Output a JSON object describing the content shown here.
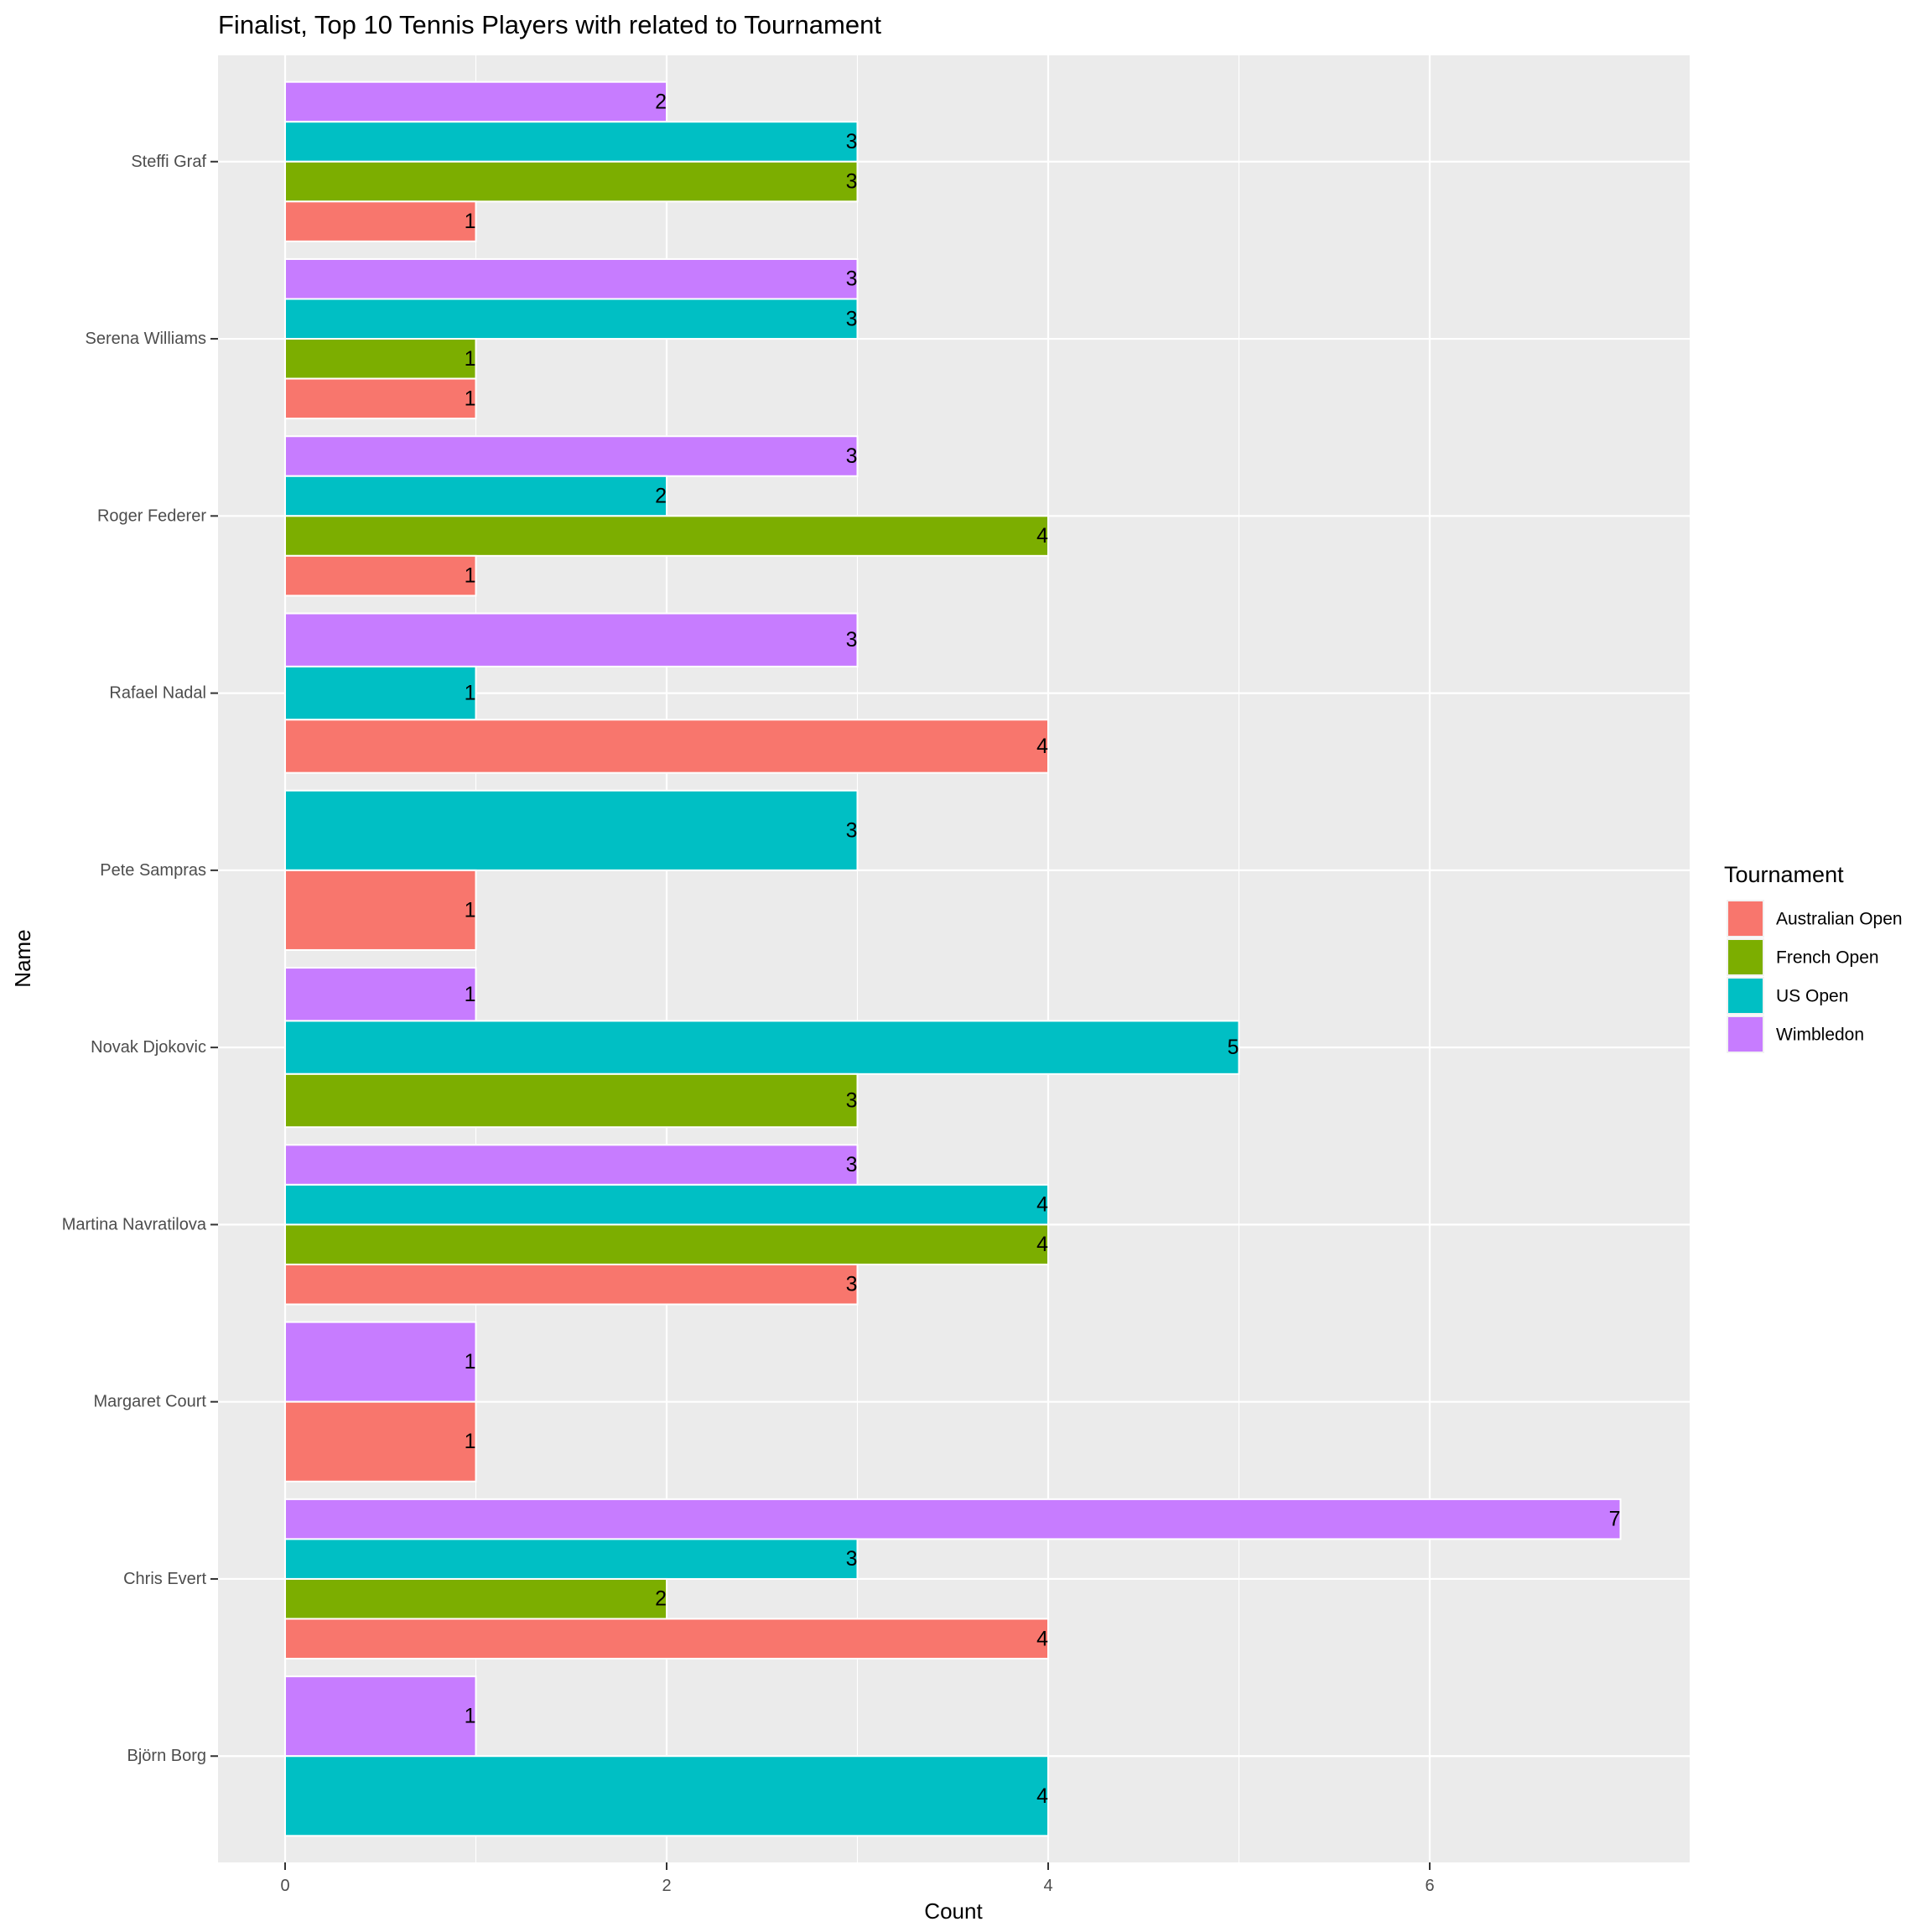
{
  "chart_data": {
    "type": "bar",
    "orientation": "horizontal",
    "position": "dodge",
    "title": "Finalist, Top 10 Tennis Players with related to Tournament",
    "xlabel": "Count",
    "ylabel": "Name",
    "xlim": [
      -0.35,
      7.35
    ],
    "x_ticks": [
      0,
      2,
      4,
      6
    ],
    "grid": true,
    "legend": {
      "title": "Tournament",
      "placement": "right",
      "entries": [
        "Australian Open",
        "French Open",
        "US Open",
        "Wimbledon"
      ]
    },
    "colors": {
      "Australian Open": "#F8766D",
      "French Open": "#7CAE00",
      "US Open": "#00BFC4",
      "Wimbledon": "#C77CFF"
    },
    "categories": [
      "Björn Borg",
      "Chris Evert",
      "Margaret Court",
      "Martina Navratilova",
      "Novak Djokovic",
      "Pete Sampras",
      "Rafael Nadal",
      "Roger Federer",
      "Serena Williams",
      "Steffi Graf"
    ],
    "bars": [
      {
        "name": "Björn Borg",
        "values": [
          {
            "tournament": "US Open",
            "value": 4
          },
          {
            "tournament": "Wimbledon",
            "value": 1
          }
        ]
      },
      {
        "name": "Chris Evert",
        "values": [
          {
            "tournament": "Australian Open",
            "value": 4
          },
          {
            "tournament": "French Open",
            "value": 2
          },
          {
            "tournament": "US Open",
            "value": 3
          },
          {
            "tournament": "Wimbledon",
            "value": 7
          }
        ]
      },
      {
        "name": "Margaret Court",
        "values": [
          {
            "tournament": "Australian Open",
            "value": 1
          },
          {
            "tournament": "Wimbledon",
            "value": 1
          }
        ]
      },
      {
        "name": "Martina Navratilova",
        "values": [
          {
            "tournament": "Australian Open",
            "value": 3
          },
          {
            "tournament": "French Open",
            "value": 4
          },
          {
            "tournament": "US Open",
            "value": 4
          },
          {
            "tournament": "Wimbledon",
            "value": 3
          }
        ]
      },
      {
        "name": "Novak Djokovic",
        "values": [
          {
            "tournament": "French Open",
            "value": 3
          },
          {
            "tournament": "US Open",
            "value": 5
          },
          {
            "tournament": "Wimbledon",
            "value": 1
          }
        ]
      },
      {
        "name": "Pete Sampras",
        "values": [
          {
            "tournament": "Australian Open",
            "value": 1
          },
          {
            "tournament": "US Open",
            "value": 3
          }
        ]
      },
      {
        "name": "Rafael Nadal",
        "values": [
          {
            "tournament": "Australian Open",
            "value": 4
          },
          {
            "tournament": "US Open",
            "value": 1
          },
          {
            "tournament": "Wimbledon",
            "value": 3
          }
        ]
      },
      {
        "name": "Roger Federer",
        "values": [
          {
            "tournament": "Australian Open",
            "value": 1
          },
          {
            "tournament": "French Open",
            "value": 4
          },
          {
            "tournament": "US Open",
            "value": 2
          },
          {
            "tournament": "Wimbledon",
            "value": 3
          }
        ]
      },
      {
        "name": "Serena Williams",
        "values": [
          {
            "tournament": "Australian Open",
            "value": 1
          },
          {
            "tournament": "French Open",
            "value": 1
          },
          {
            "tournament": "US Open",
            "value": 3
          },
          {
            "tournament": "Wimbledon",
            "value": 3
          }
        ]
      },
      {
        "name": "Steffi Graf",
        "values": [
          {
            "tournament": "Australian Open",
            "value": 1
          },
          {
            "tournament": "French Open",
            "value": 3
          },
          {
            "tournament": "US Open",
            "value": 3
          },
          {
            "tournament": "Wimbledon",
            "value": 2
          }
        ]
      }
    ]
  }
}
